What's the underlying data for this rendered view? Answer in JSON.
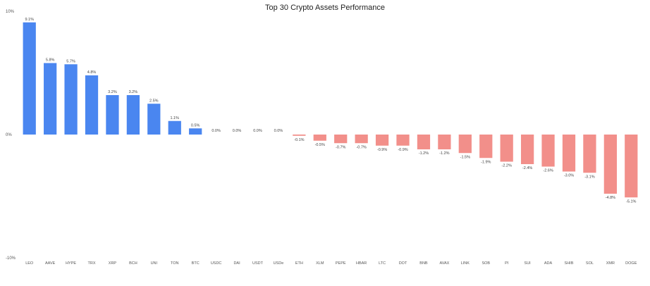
{
  "chart_data": {
    "type": "bar",
    "title": "Top 30 Crypto Assets Performance",
    "xlabel": "",
    "ylabel": "",
    "ylim": [
      -10,
      10
    ],
    "yticks": [
      "10%",
      "0%",
      "-10%"
    ],
    "ytick_values": [
      10,
      0,
      -10
    ],
    "grid": false,
    "legend": "none",
    "colors": {
      "positive": "#4a86f0",
      "negative": "#f28f8a"
    },
    "categories": [
      "LEO",
      "AAVE",
      "HYPE",
      "TRX",
      "XRP",
      "BCH",
      "UNI",
      "TON",
      "BTC",
      "USDC",
      "DAI",
      "USDT",
      "USDe",
      "ETH",
      "XLM",
      "PEPE",
      "HBAR",
      "LTC",
      "DOT",
      "BNB",
      "AVAX",
      "LINK",
      "SOB",
      "PI",
      "SUI",
      "ADA",
      "SHIB",
      "SOL",
      "XMR",
      "DOGE"
    ],
    "values": [
      9.1,
      5.8,
      5.7,
      4.8,
      3.2,
      3.2,
      2.5,
      1.1,
      0.5,
      0.0,
      0.0,
      0.0,
      0.0,
      -0.1,
      -0.5,
      -0.7,
      -0.7,
      -0.9,
      -0.9,
      -1.2,
      -1.2,
      -1.5,
      -1.9,
      -2.2,
      -2.4,
      -2.6,
      -3.0,
      -3.1,
      -4.8,
      -5.1
    ],
    "value_labels": [
      "9.1%",
      "5.8%",
      "5.7%",
      "4.8%",
      "3.2%",
      "3.2%",
      "2.5%",
      "1.1%",
      "0.5%",
      "0.0%",
      "0.0%",
      "0.0%",
      "0.0%",
      "-0.1%",
      "-0.5%",
      "-0.7%",
      "-0.7%",
      "-0.9%",
      "-0.9%",
      "-1.2%",
      "-1.2%",
      "-1.5%",
      "-1.9%",
      "-2.2%",
      "-2.4%",
      "-2.6%",
      "-3.0%",
      "-3.1%",
      "-4.8%",
      "-5.1%"
    ]
  }
}
